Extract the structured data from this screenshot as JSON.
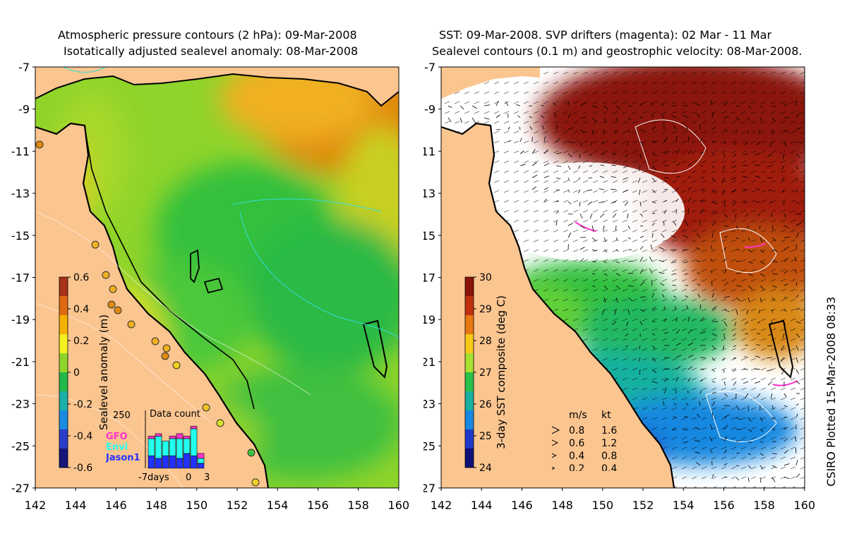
{
  "left_panel": {
    "title_line1": "Atmospheric pressure contours (2 hPa): 09-Mar-2008",
    "title_line2": "Isotatically adjusted sealevel anomaly: 08-Mar-2008",
    "colorbar": {
      "label": "Sealevel anomaly (m)",
      "ticks": [
        "0.6",
        "0.4",
        "0.2",
        "0",
        "-0.2",
        "-0.4",
        "-0.6"
      ],
      "colors": [
        "#a8321a",
        "#e06a10",
        "#f5b000",
        "#f5f020",
        "#8fd42a",
        "#22b84a",
        "#1bb0a8",
        "#1a8ce0",
        "#2a3cc8",
        "#15157a"
      ]
    },
    "inset": {
      "title": "Data count",
      "ymax_label": "250",
      "x_labels": [
        "-7days",
        "0",
        "3"
      ],
      "legend": [
        {
          "name": "GFO",
          "color": "#ff33cc"
        },
        {
          "name": "Envi",
          "color": "#22ffee"
        },
        {
          "name": "Jason1",
          "color": "#2233ff"
        }
      ],
      "bars": [
        {
          "day": -7,
          "jason": 0.25,
          "envi": 0.35,
          "gfo": 0.05
        },
        {
          "day": -6,
          "jason": 0.2,
          "envi": 0.45,
          "gfo": 0.05
        },
        {
          "day": -5,
          "jason": 0.25,
          "envi": 0.3,
          "gfo": 0.0
        },
        {
          "day": -4,
          "jason": 0.25,
          "envi": 0.35,
          "gfo": 0.05
        },
        {
          "day": -3,
          "jason": 0.2,
          "envi": 0.4,
          "gfo": 0.1
        },
        {
          "day": -2,
          "jason": 0.3,
          "envi": 0.3,
          "gfo": 0.05
        },
        {
          "day": -1,
          "jason": 0.25,
          "envi": 0.55,
          "gfo": 0.05
        },
        {
          "day": 0,
          "jason": 0.1,
          "envi": 0.1,
          "gfo": 0.1
        }
      ]
    }
  },
  "right_panel": {
    "title_line1": "SST: 09-Mar-2008. SVP drifters (magenta): 02 Mar - 11 Mar",
    "title_line2": "Sealevel contours (0.1 m) and geostrophic velocity: 08-Mar-2008.",
    "colorbar": {
      "label": "3-day SST composite (deg C)",
      "ticks": [
        "30",
        "29",
        "28",
        "27",
        "26",
        "25",
        "24"
      ],
      "colors": [
        "#8a1208",
        "#c0300e",
        "#e87812",
        "#f8c81a",
        "#a8e030",
        "#28c04a",
        "#18b0a0",
        "#1888e0",
        "#2038c8",
        "#101078"
      ]
    },
    "speed_legend": {
      "header_ms": "m/s",
      "header_kt": "kt",
      "rows": [
        {
          "ms": "0.8",
          "kt": "1.6"
        },
        {
          "ms": "0.6",
          "kt": "1.2"
        },
        {
          "ms": "0.4",
          "kt": "0.8"
        },
        {
          "ms": "0.2",
          "kt": "0.4"
        }
      ]
    }
  },
  "axes": {
    "lat_labels": [
      "-7",
      "-9",
      "-11",
      "-13",
      "-15",
      "-17",
      "-19",
      "-21",
      "-23",
      "-25",
      "-27"
    ],
    "lon_labels": [
      "142",
      "144",
      "146",
      "148",
      "150",
      "152",
      "154",
      "156",
      "158",
      "160"
    ]
  },
  "credit": "CSIRO Plotted 15-Mar-2008 08:33",
  "colors": {
    "land": "#fbc590",
    "coast": "#000000",
    "drifter": "#ff33cc",
    "pressure_contour": "#33dddd"
  }
}
